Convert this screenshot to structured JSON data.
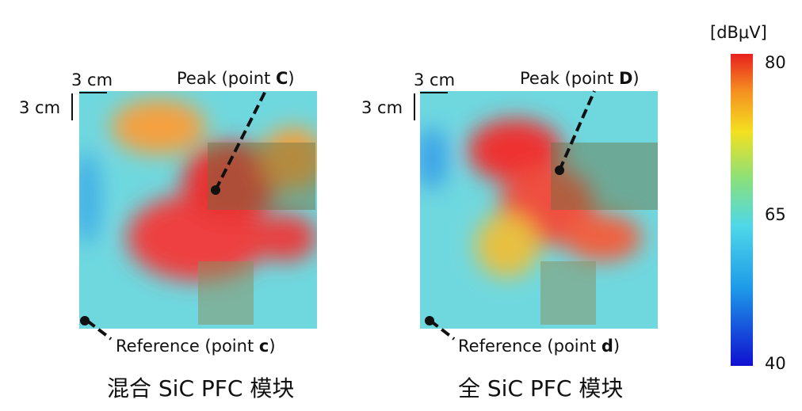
{
  "panels": [
    {
      "scale_x": "3 cm",
      "scale_y": "3 cm",
      "peak_prefix": "Peak (point",
      "peak_point": "C",
      "peak_suffix": ")",
      "ref_prefix": "Reference (point",
      "ref_point": "c",
      "ref_suffix": ")",
      "caption": "混合 SiC PFC 模块"
    },
    {
      "scale_x": "3 cm",
      "scale_y": "3 cm",
      "peak_prefix": "Peak (point",
      "peak_point": "D",
      "peak_suffix": ")",
      "ref_prefix": "Reference (point",
      "ref_point": "d",
      "ref_suffix": ")",
      "caption": "全 SiC PFC 模块"
    }
  ],
  "colorbar": {
    "unit": "[dBμV]",
    "ticks": [
      80,
      65,
      40
    ]
  }
}
